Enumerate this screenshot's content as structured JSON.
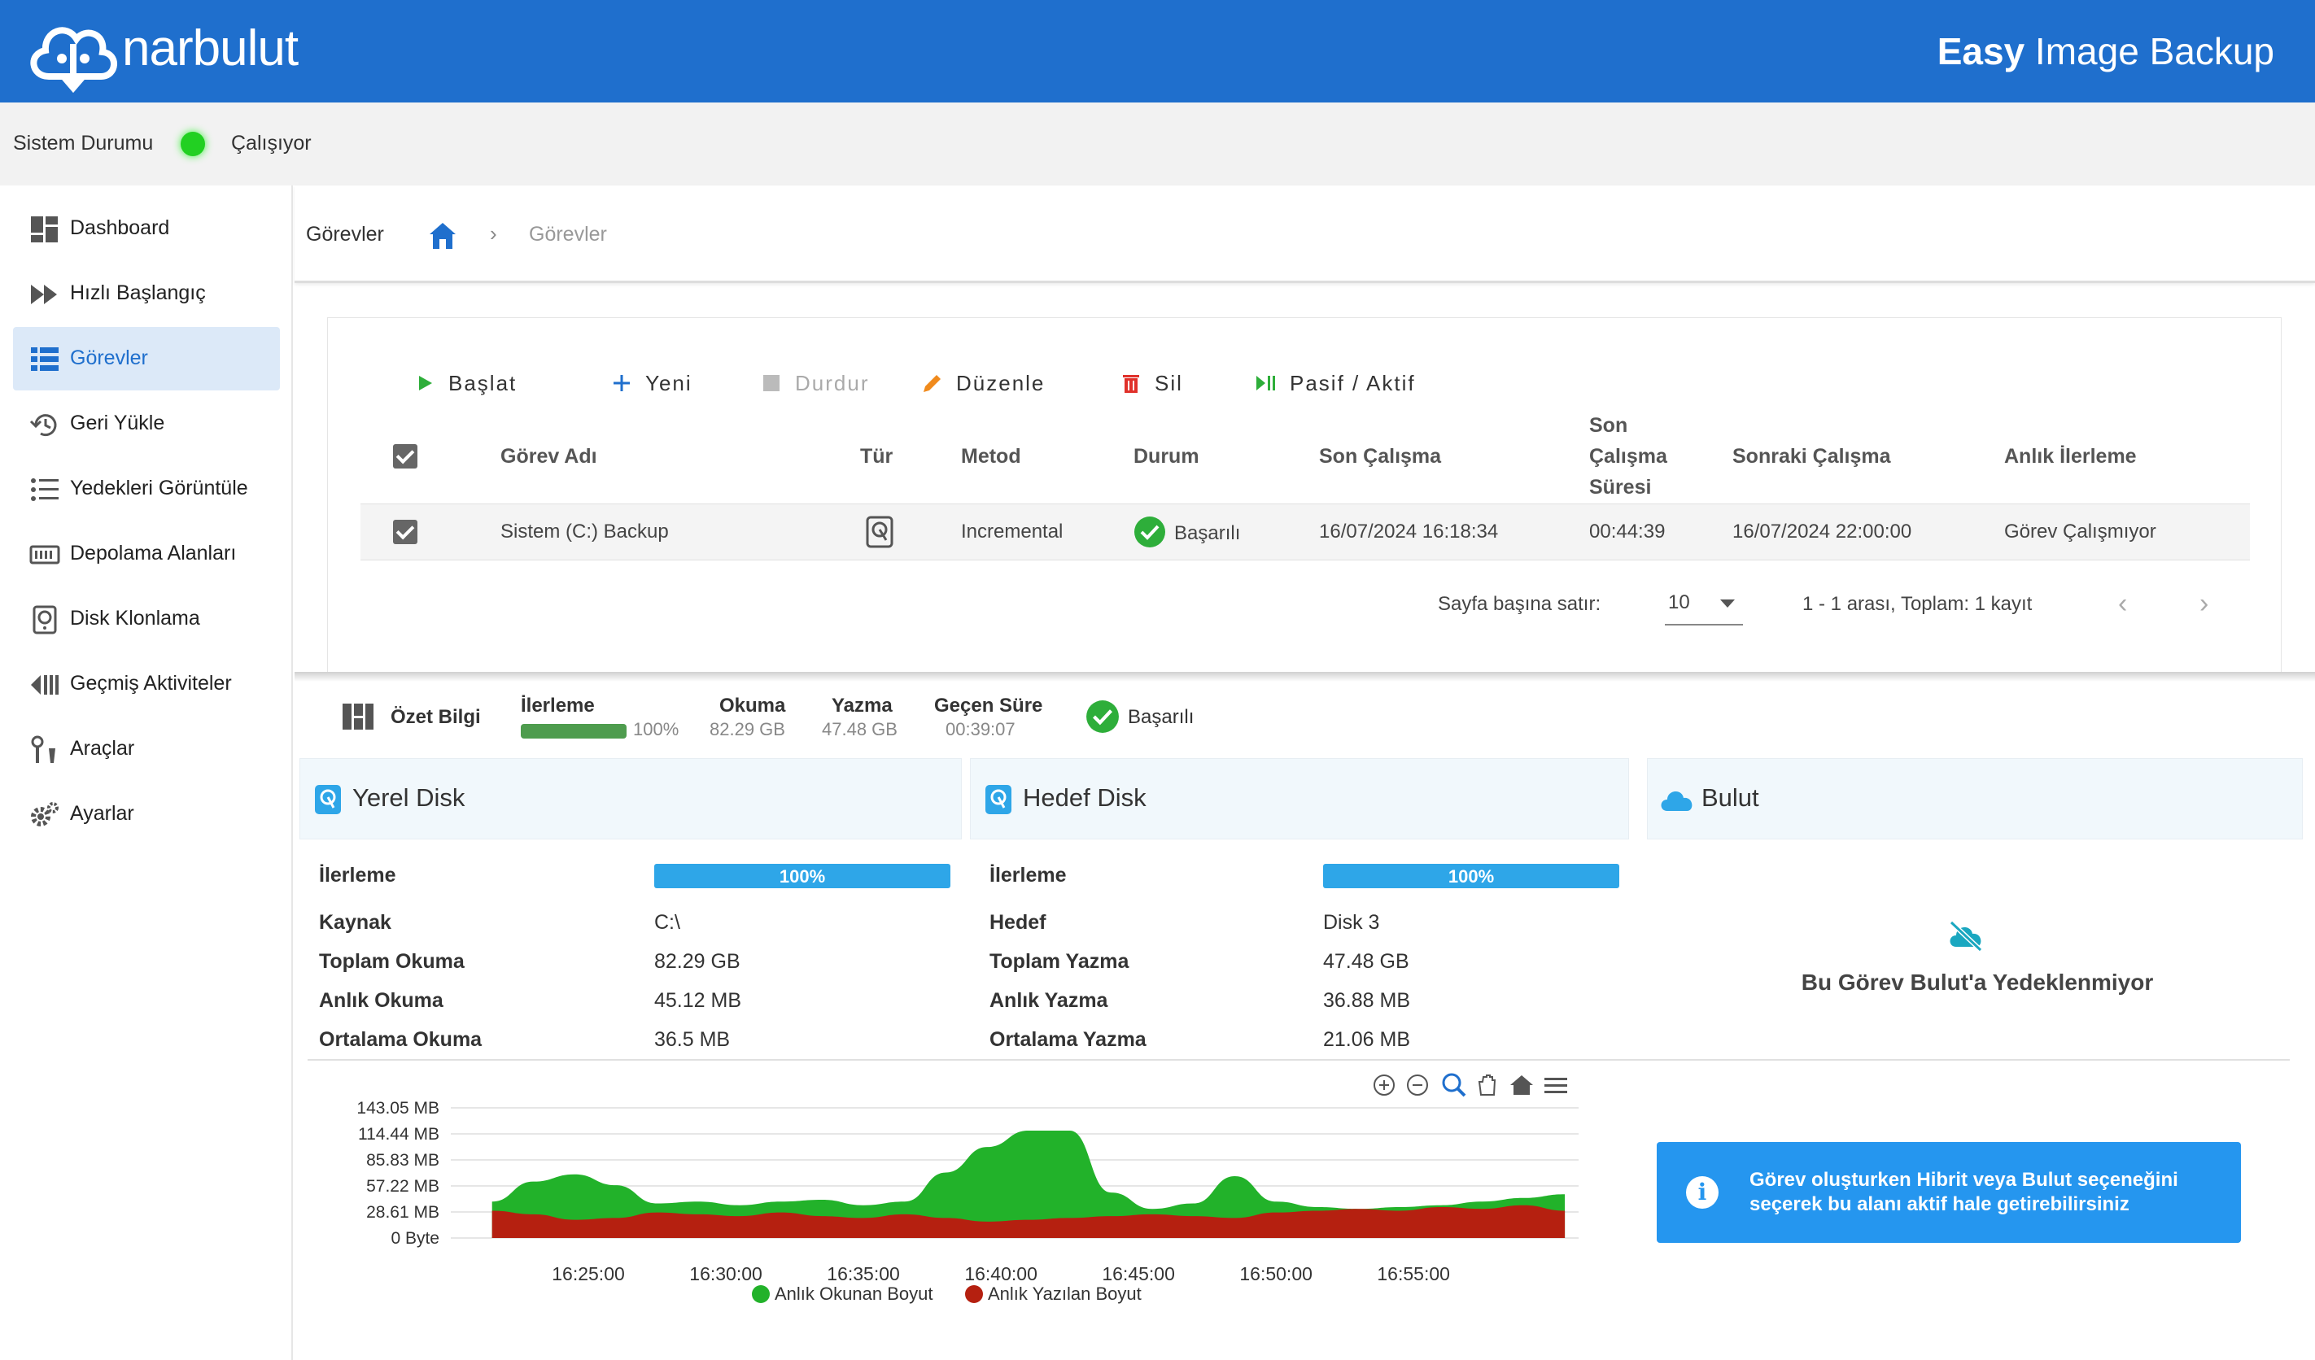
{
  "header": {
    "logo_text": "narbulut",
    "title_bold": "Easy",
    "title_rest": " Image Backup"
  },
  "status": {
    "label": "Sistem Durumu",
    "value": "Çalışıyor",
    "color": "#22d022"
  },
  "sidebar": {
    "items": [
      {
        "label": "Dashboard",
        "icon": "dashboard-icon"
      },
      {
        "label": "Hızlı Başlangıç",
        "icon": "fast-forward-icon"
      },
      {
        "label": "Görevler",
        "icon": "list-icon",
        "active": true
      },
      {
        "label": "Geri Yükle",
        "icon": "restore-icon"
      },
      {
        "label": "Yedekleri Görüntüle",
        "icon": "list-view-icon"
      },
      {
        "label": "Depolama Alanları",
        "icon": "storage-icon"
      },
      {
        "label": "Disk Klonlama",
        "icon": "disk-icon"
      },
      {
        "label": "Geçmiş Aktiviteler",
        "icon": "history-icon"
      },
      {
        "label": "Araçlar",
        "icon": "tools-icon"
      },
      {
        "label": "Ayarlar",
        "icon": "gear-icon"
      }
    ]
  },
  "breadcrumb": {
    "title": "Görevler",
    "separator": "›",
    "current": "Görevler"
  },
  "toolbar": {
    "start": "Başlat",
    "new": "Yeni",
    "stop": "Durdur",
    "edit": "Düzenle",
    "delete": "Sil",
    "toggle": "Pasif / Aktif"
  },
  "table": {
    "headers": {
      "name": "Görev Adı",
      "type": "Tür",
      "method": "Metod",
      "status": "Durum",
      "last_run": "Son Çalışma",
      "last_run_duration_1": "Son",
      "last_run_duration_2": "Çalışma",
      "last_run_duration_3": "Süresi",
      "next_run": "Sonraki Çalışma",
      "progress": "Anlık İlerleme"
    },
    "rows": [
      {
        "name": "Sistem (C:) Backup",
        "method": "Incremental",
        "status": "Başarılı",
        "last_run": "16/07/2024 16:18:34",
        "duration": "00:44:39",
        "next_run": "16/07/2024 22:00:00",
        "progress": "Görev Çalışmıyor"
      }
    ],
    "pager": {
      "rows_label": "Sayfa başına satır:",
      "rows_value": "10",
      "info": "1 - 1 arası, Toplam: 1 kayıt",
      "prev": "‹",
      "next": "›"
    }
  },
  "summary": {
    "title": "Özet Bilgi",
    "progress_label": "İlerleme",
    "progress_value": "100%",
    "progress_fraction": 1.0,
    "read_label": "Okuma",
    "read_value": "82.29 GB",
    "write_label": "Yazma",
    "write_value": "47.48 GB",
    "elapsed_label": "Geçen Süre",
    "elapsed_value": "00:39:07",
    "status": "Başarılı"
  },
  "local_disk": {
    "title": "Yerel Disk",
    "progress_label": "İlerleme",
    "progress_value": "100%",
    "source_label": "Kaynak",
    "source_value": "C:\\",
    "total_label": "Toplam Okuma",
    "total_value": "82.29 GB",
    "instant_label": "Anlık Okuma",
    "instant_value": "45.12 MB",
    "avg_label": "Ortalama Okuma",
    "avg_value": "36.5 MB"
  },
  "target_disk": {
    "title": "Hedef Disk",
    "progress_label": "İlerleme",
    "progress_value": "100%",
    "target_label": "Hedef",
    "target_value": "Disk 3",
    "total_label": "Toplam Yazma",
    "total_value": "47.48 GB",
    "instant_label": "Anlık Yazma",
    "instant_value": "36.88 MB",
    "avg_label": "Ortalama Yazma",
    "avg_value": "21.06 MB"
  },
  "cloud": {
    "title": "Bulut",
    "message": "Bu Görev Bulut'a Yedeklenmiyor",
    "info": "Görev oluşturken Hibrit veya Bulut seçeneğini seçerek bu alanı aktif hale getirebilirsiniz"
  },
  "chart_data": {
    "type": "area",
    "y_tick_labels": [
      "143.05 MB",
      "114.44 MB",
      "85.83 MB",
      "57.22 MB",
      "28.61 MB",
      "0 Byte"
    ],
    "ylim": [
      0,
      143.05
    ],
    "x_tick_labels": [
      "16:25:00",
      "16:30:00",
      "16:35:00",
      "16:40:00",
      "16:45:00",
      "16:50:00",
      "16:55:00"
    ],
    "x_minutes": [
      21.5,
      23,
      24.5,
      26,
      27.5,
      29,
      30.5,
      32,
      33.5,
      35,
      36.5,
      38,
      39.5,
      41,
      42.5,
      44,
      45.5,
      47,
      48.5,
      50,
      51.5,
      53,
      54.5,
      56,
      57.5,
      59,
      60.5
    ],
    "series": [
      {
        "name": "Anlık Okunan Boyut",
        "color": "#22b22a",
        "values": [
          40,
          62,
          70,
          58,
          38,
          40,
          36,
          40,
          42,
          36,
          40,
          72,
          100,
          118,
          118,
          50,
          32,
          38,
          68,
          40,
          34,
          32,
          34,
          36,
          40,
          44,
          48
        ]
      },
      {
        "name": "Anlık Yazılan Boyut",
        "color": "#b52010",
        "values": [
          30,
          26,
          20,
          22,
          28,
          26,
          24,
          28,
          24,
          22,
          26,
          22,
          18,
          20,
          22,
          24,
          26,
          24,
          22,
          28,
          30,
          32,
          30,
          34,
          32,
          36,
          30
        ]
      }
    ],
    "grid": true,
    "legend": "bottom"
  },
  "chart_tools": [
    "zoom-in-icon",
    "zoom-out-icon",
    "magnify-icon",
    "pan-icon",
    "home-icon",
    "menu-icon"
  ]
}
